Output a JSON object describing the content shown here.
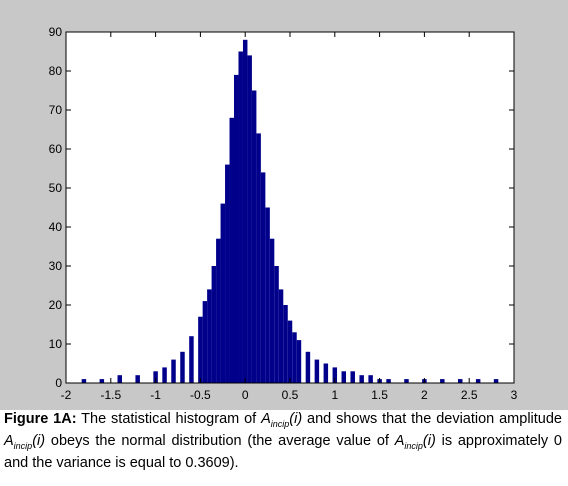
{
  "chart_data": {
    "type": "bar",
    "title": "",
    "xlabel": "",
    "ylabel": "",
    "xlim": [
      -2,
      3
    ],
    "ylim": [
      0,
      90
    ],
    "grid": false,
    "bar_color": "#00008b",
    "background_color": "#c8c8c8",
    "plot_background": "#ffffff",
    "x_ticks": [
      -2,
      -1.5,
      -1,
      -0.5,
      0,
      0.5,
      1,
      1.5,
      2,
      2.5,
      3
    ],
    "x_tick_labels": [
      "-2",
      "-1.5",
      "-1",
      "-0.5",
      "0",
      "0.5",
      "1",
      "1.5",
      "2",
      "2.5",
      "3"
    ],
    "y_ticks": [
      0,
      10,
      20,
      30,
      40,
      50,
      60,
      70,
      80,
      90
    ],
    "y_tick_labels": [
      "0",
      "10",
      "20",
      "30",
      "40",
      "50",
      "60",
      "70",
      "80",
      "90"
    ],
    "x": [
      -1.8,
      -1.6,
      -1.4,
      -1.2,
      -1.0,
      -0.9,
      -0.8,
      -0.7,
      -0.6,
      -0.5,
      -0.45,
      -0.4,
      -0.35,
      -0.3,
      -0.25,
      -0.2,
      -0.15,
      -0.1,
      -0.05,
      0.0,
      0.05,
      0.1,
      0.15,
      0.2,
      0.25,
      0.3,
      0.35,
      0.4,
      0.45,
      0.5,
      0.55,
      0.6,
      0.7,
      0.8,
      0.9,
      1.0,
      1.1,
      1.2,
      1.3,
      1.4,
      1.5,
      1.6,
      1.8,
      2.0,
      2.2,
      2.4,
      2.6,
      2.8
    ],
    "values": [
      1,
      1,
      2,
      2,
      3,
      4,
      6,
      8,
      12,
      17,
      21,
      24,
      30,
      37,
      46,
      56,
      68,
      79,
      85,
      88,
      84,
      75,
      64,
      54,
      45,
      37,
      30,
      24,
      20,
      16,
      13,
      11,
      8,
      6,
      5,
      4,
      3,
      3,
      2,
      2,
      1,
      1,
      1,
      1,
      1,
      1,
      1,
      1
    ]
  },
  "caption": {
    "label": "Figure 1A:",
    "part1": " The statistical histogram of ",
    "sym1": "A",
    "sub1": "incip",
    "arg1": "(i)",
    "part2": " and shows that the deviation amplitude ",
    "sym2": "A",
    "sub2": "incip",
    "arg2": "(i)",
    "part3": " obeys the normal distribution (the average value of ",
    "sym3": "A",
    "sub3": "incip",
    "arg3": "(i)",
    "part4": " is approximately 0 and the variance is equal to 0.3609)."
  }
}
